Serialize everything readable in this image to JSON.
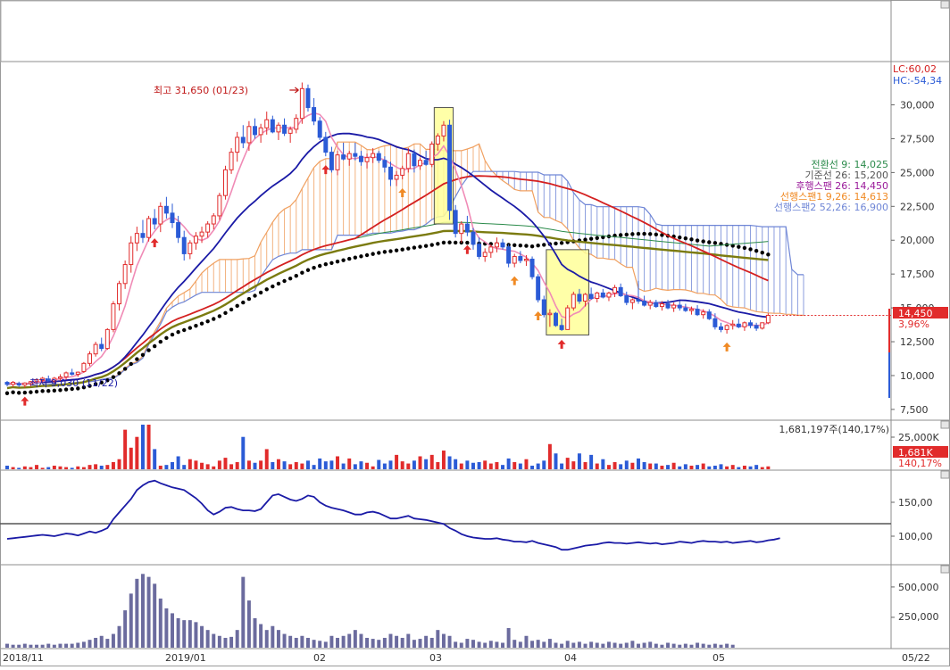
{
  "chart_data": {
    "type": "candlestick",
    "colors": {
      "up": "#e12b2b",
      "down": "#2b5bd6",
      "ma5": "#f08bb6",
      "ma20": "#1a1aa6",
      "ma60": "#d42020",
      "ma120": "#2a8a4a",
      "ma240": "#7b7b10",
      "pivot_dots": "#000000",
      "kumo_senkou1": "#f0a060",
      "kumo_senkou2": "#6f86d6",
      "highlight_box": "#ffff99",
      "arrow_red": "#e12b2b",
      "arrow_orange": "#f08a24",
      "volume_bars": "#6b6b9e",
      "cci_line": "#1a1aa6"
    },
    "top_badges": {
      "lc": "LC:60,02",
      "hc": "HC:-54,34"
    },
    "high_annotation": "최고 31,650 (01/23)",
    "low_annotation": "최저 9,030 (11/22)",
    "price_axis": {
      "ticks": [
        "30,000",
        "27,500",
        "25,000",
        "22,500",
        "20,000",
        "17,500",
        "15,000",
        "12,500",
        "10,000",
        "7,500"
      ],
      "values": [
        30000,
        27500,
        25000,
        22500,
        20000,
        17500,
        15000,
        12500,
        10000,
        7500
      ],
      "ylim": [
        6900,
        33000
      ]
    },
    "current_price": {
      "value": 14450,
      "label": "14,450",
      "change": "3,96%"
    },
    "ichimoku": {
      "tenkan": "전환선 9: 14,025",
      "kijun": "기준선 26: 15,200",
      "chikou": "후행스팬 26: 14,450",
      "senkou1": "선행스팬1 9,26: 14,613",
      "senkou2": "선행스팬2 52,26: 16,900"
    },
    "volume_panel": {
      "summary": "1,681,197주(140,17%)",
      "ticks": [
        "25,000K"
      ],
      "current_label": "1,681K",
      "current_pct": "140,17%"
    },
    "cci_panel": {
      "ticks": [
        "150,00",
        "100,00"
      ],
      "values": [
        150,
        100
      ]
    },
    "obv_panel": {
      "ticks": [
        "500,000",
        "250,000"
      ],
      "values": [
        500000,
        250000
      ]
    },
    "x_axis": {
      "labels": [
        "2018/11",
        "2019/01",
        "02",
        "03",
        "04",
        "05",
        "05/22"
      ]
    },
    "candles": [
      [
        9500,
        9600,
        9200,
        9350
      ],
      [
        9350,
        9600,
        9150,
        9500
      ],
      [
        9400,
        9550,
        9150,
        9300
      ],
      [
        9300,
        9500,
        9100,
        9450
      ],
      [
        9400,
        9600,
        9200,
        9550
      ],
      [
        9550,
        9800,
        9400,
        9700
      ],
      [
        9650,
        9900,
        9500,
        9800
      ],
      [
        9750,
        10000,
        9550,
        9600
      ],
      [
        9600,
        9900,
        9400,
        9800
      ],
      [
        9800,
        10100,
        9600,
        9900
      ],
      [
        9900,
        10300,
        9700,
        10200
      ],
      [
        10200,
        10500,
        10000,
        10100
      ],
      [
        10100,
        10300,
        9900,
        10250
      ],
      [
        10300,
        11000,
        10200,
        10900
      ],
      [
        10900,
        11800,
        10700,
        11600
      ],
      [
        11600,
        12500,
        11400,
        12300
      ],
      [
        12300,
        12800,
        11800,
        12000
      ],
      [
        12000,
        13500,
        11900,
        13400
      ],
      [
        13400,
        15500,
        13200,
        15300
      ],
      [
        15300,
        17000,
        14800,
        16800
      ],
      [
        16800,
        18500,
        16400,
        18200
      ],
      [
        18200,
        20300,
        17600,
        19800
      ],
      [
        19800,
        21000,
        19200,
        20500
      ],
      [
        20500,
        21500,
        19800,
        20200
      ],
      [
        20200,
        21800,
        19900,
        21600
      ],
      [
        21600,
        22300,
        20800,
        21200
      ],
      [
        21200,
        22800,
        20600,
        22500
      ],
      [
        22500,
        23200,
        21600,
        22000
      ],
      [
        22000,
        22700,
        20900,
        21300
      ],
      [
        21300,
        21800,
        19800,
        20200
      ],
      [
        20200,
        20700,
        18500,
        19000
      ],
      [
        19000,
        20000,
        18600,
        19800
      ],
      [
        19800,
        20600,
        19300,
        20300
      ],
      [
        20300,
        21000,
        19800,
        20600
      ],
      [
        20600,
        21400,
        20200,
        21200
      ],
      [
        21200,
        22000,
        20800,
        21800
      ],
      [
        21800,
        23500,
        21500,
        23300
      ],
      [
        23300,
        25500,
        23000,
        25200
      ],
      [
        25200,
        26800,
        24900,
        26500
      ],
      [
        26500,
        28000,
        25800,
        27600
      ],
      [
        27600,
        28500,
        26800,
        27200
      ],
      [
        27200,
        28800,
        26600,
        28400
      ],
      [
        28400,
        29000,
        27500,
        27800
      ],
      [
        27800,
        28600,
        27200,
        28300
      ],
      [
        28300,
        29500,
        27800,
        28900
      ],
      [
        28900,
        29200,
        27900,
        28000
      ],
      [
        28000,
        28700,
        27400,
        28500
      ],
      [
        28500,
        29000,
        27700,
        27900
      ],
      [
        27900,
        28400,
        27200,
        28200
      ],
      [
        28200,
        29300,
        27900,
        29000
      ],
      [
        29000,
        31650,
        28600,
        31200
      ],
      [
        31200,
        31500,
        29500,
        29800
      ],
      [
        29800,
        30500,
        28500,
        28800
      ],
      [
        28800,
        29100,
        27400,
        27600
      ],
      [
        27600,
        28000,
        26200,
        26500
      ],
      [
        26500,
        26900,
        25000,
        25200
      ],
      [
        25200,
        26600,
        24800,
        26300
      ],
      [
        26300,
        27200,
        25900,
        26000
      ],
      [
        26000,
        26600,
        25500,
        26400
      ],
      [
        26400,
        27200,
        25900,
        26200
      ],
      [
        26200,
        26600,
        25500,
        25800
      ],
      [
        25800,
        26400,
        25300,
        26100
      ],
      [
        26100,
        26800,
        25700,
        26400
      ],
      [
        26400,
        26600,
        25700,
        25900
      ],
      [
        25900,
        26200,
        25000,
        25400
      ],
      [
        25400,
        25800,
        24000,
        24500
      ],
      [
        24500,
        25100,
        24000,
        24800
      ],
      [
        24800,
        25500,
        24500,
        25300
      ],
      [
        25300,
        26800,
        25000,
        26400
      ],
      [
        26400,
        26700,
        25000,
        25500
      ],
      [
        25500,
        26100,
        25200,
        25900
      ],
      [
        25900,
        26600,
        25500,
        25600
      ],
      [
        25600,
        27300,
        25400,
        27100
      ],
      [
        27100,
        27900,
        26600,
        27700
      ],
      [
        27700,
        28800,
        27300,
        28500
      ],
      [
        28500,
        28900,
        21500,
        22200
      ],
      [
        22200,
        22600,
        20200,
        20500
      ],
      [
        20500,
        21400,
        19800,
        21200
      ],
      [
        21200,
        21800,
        20300,
        20600
      ],
      [
        20600,
        20900,
        19300,
        19700
      ],
      [
        19700,
        20200,
        18600,
        18800
      ],
      [
        18800,
        19400,
        18400,
        19100
      ],
      [
        19100,
        19700,
        18700,
        19500
      ],
      [
        19500,
        20200,
        19100,
        19800
      ],
      [
        19800,
        20100,
        19300,
        19500
      ],
      [
        19500,
        19700,
        18000,
        18300
      ],
      [
        18300,
        19000,
        18000,
        18800
      ],
      [
        18800,
        19200,
        18300,
        18500
      ],
      [
        18500,
        18900,
        18100,
        18600
      ],
      [
        18600,
        18800,
        17100,
        17300
      ],
      [
        17300,
        17500,
        15400,
        15600
      ],
      [
        15600,
        15900,
        14300,
        14500
      ],
      [
        14500,
        14900,
        13600,
        14600
      ],
      [
        14600,
        14700,
        13600,
        13700
      ],
      [
        13700,
        14200,
        13300,
        13400
      ],
      [
        13400,
        15200,
        13400,
        15000
      ],
      [
        15000,
        16200,
        14800,
        16000
      ],
      [
        16000,
        16400,
        15300,
        15500
      ],
      [
        15500,
        16100,
        15100,
        16000
      ],
      [
        16000,
        16500,
        15600,
        15700
      ],
      [
        15700,
        16200,
        15400,
        16100
      ],
      [
        16100,
        16400,
        15700,
        15800
      ],
      [
        15800,
        16200,
        15500,
        16100
      ],
      [
        16100,
        16700,
        15800,
        16500
      ],
      [
        16500,
        16800,
        15800,
        15900
      ],
      [
        15900,
        16200,
        15200,
        15400
      ],
      [
        15400,
        15700,
        14900,
        15600
      ],
      [
        15600,
        17000,
        15300,
        15500
      ],
      [
        15500,
        15900,
        15100,
        15200
      ],
      [
        15200,
        15600,
        14900,
        15400
      ],
      [
        15400,
        15600,
        15000,
        15100
      ],
      [
        15100,
        15500,
        14800,
        15300
      ],
      [
        15300,
        15600,
        14900,
        15000
      ],
      [
        15000,
        15400,
        14700,
        15200
      ],
      [
        15200,
        15500,
        14800,
        15000
      ],
      [
        15000,
        15300,
        14700,
        14800
      ],
      [
        14800,
        15100,
        14500,
        14900
      ],
      [
        14900,
        15200,
        14400,
        14500
      ],
      [
        14500,
        14900,
        14200,
        14700
      ],
      [
        14700,
        14900,
        14100,
        14200
      ],
      [
        14200,
        14600,
        13400,
        13600
      ],
      [
        13600,
        13900,
        13200,
        13400
      ],
      [
        13400,
        13800,
        13100,
        13700
      ],
      [
        13700,
        14100,
        13400,
        13800
      ],
      [
        13800,
        14200,
        13500,
        13600
      ],
      [
        13600,
        14000,
        13300,
        13900
      ],
      [
        13900,
        14100,
        13500,
        13700
      ],
      [
        13700,
        13900,
        13300,
        13500
      ],
      [
        13500,
        13900,
        13400,
        13900
      ],
      [
        13900,
        14600,
        13800,
        14450
      ]
    ],
    "arrows": [
      {
        "i": 3,
        "color": "red"
      },
      {
        "i": 25,
        "color": "red"
      },
      {
        "i": 54,
        "color": "red"
      },
      {
        "i": 67,
        "color": "orange"
      },
      {
        "i": 78,
        "color": "red"
      },
      {
        "i": 86,
        "color": "orange"
      },
      {
        "i": 90,
        "color": "orange"
      },
      {
        "i": 94,
        "color": "red"
      },
      {
        "i": 122,
        "color": "orange"
      }
    ],
    "highlight_boxes": [
      {
        "i0": 73,
        "i1": 75,
        "p0": 21200,
        "p1": 29800
      },
      {
        "i0": 92,
        "i1": 98,
        "p0": 13000,
        "p1": 19300
      }
    ],
    "volumes": [
      5,
      3,
      2,
      4,
      3,
      6,
      2,
      3,
      5,
      4,
      3,
      2,
      4,
      3,
      6,
      7,
      5,
      6,
      10,
      14,
      55,
      30,
      45,
      62,
      62,
      28,
      5,
      6,
      10,
      18,
      6,
      14,
      12,
      9,
      7,
      4,
      12,
      16,
      7,
      10,
      45,
      12,
      9,
      12,
      28,
      10,
      14,
      11,
      7,
      10,
      8,
      12,
      6,
      15,
      11,
      12,
      18,
      8,
      15,
      7,
      11,
      9,
      4,
      13,
      8,
      12,
      20,
      11,
      8,
      12,
      18,
      14,
      20,
      10,
      26,
      18,
      14,
      8,
      12,
      9,
      10,
      12,
      8,
      10,
      6,
      15,
      10,
      8,
      14,
      5,
      8,
      12,
      35,
      22,
      8,
      16,
      11,
      22,
      10,
      20,
      8,
      14,
      6,
      10,
      7,
      12,
      9,
      15,
      10,
      8,
      8,
      5,
      6,
      9,
      4,
      7,
      5,
      6,
      8,
      4,
      5,
      7,
      4,
      6,
      3,
      5,
      4,
      6,
      3,
      4
    ],
    "cci": [
      96,
      97,
      98,
      99,
      100,
      101,
      102,
      101,
      100,
      102,
      104,
      103,
      101,
      104,
      107,
      105,
      108,
      112,
      125,
      135,
      145,
      155,
      168,
      175,
      180,
      182,
      178,
      175,
      172,
      170,
      168,
      162,
      156,
      148,
      138,
      132,
      136,
      142,
      143,
      140,
      138,
      138,
      137,
      140,
      150,
      160,
      162,
      158,
      154,
      152,
      155,
      160,
      158,
      150,
      145,
      142,
      140,
      138,
      135,
      132,
      132,
      135,
      136,
      134,
      130,
      126,
      126,
      128,
      130,
      126,
      125,
      124,
      122,
      120,
      118,
      112,
      108,
      103,
      100,
      98,
      97,
      96,
      96,
      97,
      95,
      94,
      92,
      92,
      91,
      93,
      90,
      88,
      86,
      84,
      80,
      80,
      82,
      84,
      86,
      87,
      88,
      90,
      91,
      90,
      90,
      89,
      90,
      91,
      90,
      89,
      90,
      88,
      89,
      90,
      92,
      91,
      90,
      92,
      93,
      92,
      92,
      91,
      92,
      90,
      91,
      92,
      93,
      91,
      92,
      94,
      95,
      97
    ]
  },
  "obv": [
    4,
    3,
    3,
    4,
    3,
    3,
    3,
    4,
    3,
    4,
    4,
    4,
    5,
    6,
    8,
    10,
    12,
    9,
    14,
    22,
    38,
    55,
    70,
    75,
    72,
    65,
    50,
    40,
    35,
    30,
    28,
    28,
    26,
    22,
    18,
    14,
    12,
    10,
    11,
    18,
    72,
    48,
    30,
    24,
    18,
    22,
    18,
    14,
    12,
    10,
    12,
    10,
    8,
    7,
    6,
    12,
    10,
    12,
    14,
    18,
    14,
    10,
    9,
    8,
    10,
    14,
    12,
    10,
    14,
    8,
    9,
    12,
    10,
    18,
    14,
    12,
    6,
    5,
    9,
    8,
    6,
    5,
    7,
    6,
    5,
    20,
    8,
    6,
    12,
    7,
    8,
    6,
    9,
    5,
    4,
    7,
    5,
    6,
    4,
    6,
    5,
    4,
    6,
    5,
    4,
    5,
    7,
    4,
    5,
    6,
    4,
    3,
    5,
    4,
    3,
    4,
    3,
    5,
    4,
    3,
    4,
    3,
    4,
    3
  ]
}
